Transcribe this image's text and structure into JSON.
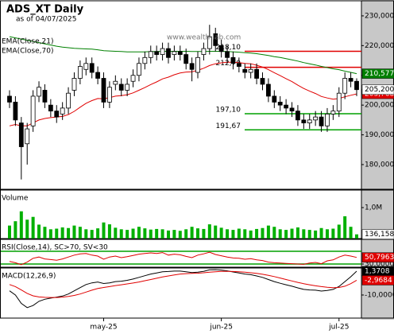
{
  "chart_data": [
    {
      "type": "candlestick",
      "title": "ADS_XT Daily",
      "subtitle": "as of 04/07/2025",
      "annotation": "www.wealth-lab.com",
      "categories": [
        null,
        null,
        null,
        null,
        null,
        null,
        null,
        null,
        null,
        null,
        null,
        null,
        null,
        null,
        null,
        null,
        "may-25",
        null,
        null,
        null,
        null,
        null,
        null,
        null,
        null,
        null,
        null,
        null,
        null,
        null,
        null,
        null,
        null,
        null,
        null,
        null,
        "jun-25",
        null,
        null,
        null,
        null,
        null,
        null,
        null,
        null,
        null,
        null,
        null,
        null,
        null,
        null,
        null,
        null,
        null,
        null,
        null,
        "jul-25",
        null,
        null,
        null
      ],
      "open": [
        203,
        201,
        194,
        187,
        193,
        203,
        205,
        200,
        198,
        197,
        199,
        205,
        209,
        212,
        214,
        211,
        209,
        201,
        207,
        207,
        205,
        208,
        210,
        214,
        216,
        218,
        217,
        219,
        217,
        218,
        217,
        214,
        211,
        217,
        219,
        224,
        220,
        218,
        216,
        214,
        212,
        211,
        212,
        209,
        207,
        203,
        201,
        200,
        199,
        198,
        195,
        194,
        195,
        196,
        193,
        197,
        198,
        204,
        209,
        208
      ],
      "high": [
        205,
        203,
        196,
        194,
        205,
        208,
        207,
        202,
        200,
        201,
        206,
        211,
        215,
        216,
        216,
        213,
        211,
        208,
        210,
        209,
        209,
        212,
        216,
        218,
        220,
        220,
        221,
        221,
        220,
        220,
        219,
        216,
        218,
        221,
        227,
        226,
        222,
        220,
        218,
        216,
        214,
        214,
        214,
        211,
        209,
        205,
        203,
        202,
        201,
        200,
        197,
        197,
        198,
        198,
        199,
        200,
        206,
        211,
        211,
        209
      ],
      "low": [
        199,
        193,
        175,
        180,
        191,
        201,
        199,
        196,
        194,
        195,
        197,
        203,
        207,
        210,
        209,
        207,
        199,
        199,
        205,
        203,
        203,
        206,
        208,
        212,
        214,
        215,
        215,
        214,
        215,
        215,
        212,
        208,
        209,
        215,
        217,
        218,
        216,
        214,
        212,
        211,
        209,
        209,
        207,
        205,
        201,
        199,
        198,
        197,
        196,
        193,
        192,
        192,
        193,
        191,
        191,
        195,
        196,
        202,
        206,
        203
      ],
      "close": [
        201,
        195,
        186,
        192,
        203,
        206,
        201,
        198,
        196,
        199,
        204,
        209,
        213,
        214,
        211,
        209,
        201,
        206,
        208,
        205,
        207,
        210,
        214,
        216,
        218,
        217,
        219,
        216,
        218,
        217,
        214,
        212,
        216,
        219,
        223,
        220,
        218,
        216,
        214,
        213,
        211,
        212,
        209,
        207,
        203,
        201,
        200,
        199,
        198,
        195,
        194,
        195,
        196,
        193,
        197,
        198,
        204,
        209,
        208,
        205.2
      ],
      "close_last_label": "205,200",
      "up_color": "#ffffff",
      "down_color": "#000000",
      "series": [
        {
          "name": "EMA(Close,21)",
          "color": "#e00000",
          "last_label": "203,768",
          "values": [
            193,
            193.5,
            193,
            193,
            194,
            195,
            195.5,
            195.8,
            196,
            196.2,
            196.8,
            197.9,
            199.3,
            200.6,
            201.5,
            202.2,
            202.1,
            202.5,
            203,
            203.2,
            203.5,
            204.1,
            205,
            205.9,
            206.9,
            207.8,
            208.8,
            209.4,
            210.2,
            210.8,
            211.1,
            211.2,
            211.7,
            212.4,
            213.3,
            213.9,
            214.2,
            214.4,
            214.4,
            214.3,
            214,
            213.9,
            213.4,
            212.8,
            211.9,
            210.9,
            209.9,
            208.9,
            207.9,
            206.7,
            205.6,
            204.7,
            203.9,
            202.9,
            202.4,
            202,
            202.2,
            202.8,
            203.3,
            203.768
          ]
        },
        {
          "name": "EMA(Close,70)",
          "color": "#008000",
          "last_label": "210,577",
          "values": [
            223,
            222.6,
            222.2,
            221.8,
            221.4,
            221,
            220.6,
            220.2,
            219.8,
            219.5,
            219.3,
            219.1,
            219,
            218.9,
            218.8,
            218.6,
            218.3,
            218.2,
            218.1,
            218,
            217.9,
            217.9,
            217.9,
            217.9,
            218,
            218,
            218.1,
            218.1,
            218.1,
            218.1,
            218.1,
            218,
            218,
            218,
            218.1,
            218.1,
            218.1,
            218,
            217.9,
            217.8,
            217.6,
            217.5,
            217.3,
            217,
            216.7,
            216.3,
            216,
            215.6,
            215.2,
            214.8,
            214.3,
            213.9,
            213.5,
            213,
            212.6,
            212.2,
            211.9,
            211.4,
            211,
            210.577
          ]
        }
      ],
      "levels": [
        {
          "value": 218.1,
          "label": "218,10",
          "color": "#e00000"
        },
        {
          "value": 212.7,
          "label": "212,70",
          "color": "#e00000"
        },
        {
          "value": 197.1,
          "label": "197,10",
          "color": "#00a000"
        },
        {
          "value": 191.67,
          "label": "191,67",
          "color": "#00a000"
        }
      ],
      "ylim": [
        171.7,
        234.8
      ],
      "yticks": [
        {
          "value": 180,
          "label": "180,000"
        },
        {
          "value": 190,
          "label": "190,000"
        },
        {
          "value": 200,
          "label": "200,000"
        },
        {
          "value": 210,
          "label": "210,000"
        },
        {
          "value": 220,
          "label": "220,000"
        },
        {
          "value": 230,
          "label": "230,000"
        }
      ]
    },
    {
      "type": "bar",
      "title": "Volume",
      "color": "#00b000",
      "last_label": "136,158",
      "values": [
        420000,
        560000,
        880000,
        610000,
        700000,
        450000,
        380000,
        300000,
        320000,
        360000,
        340000,
        420000,
        380000,
        300000,
        280000,
        330000,
        520000,
        460000,
        350000,
        300000,
        280000,
        320000,
        380000,
        330000,
        290000,
        310000,
        300000,
        260000,
        280000,
        250000,
        300000,
        380000,
        330000,
        310000,
        460000,
        420000,
        350000,
        300000,
        280000,
        320000,
        300000,
        260000,
        310000,
        340000,
        420000,
        380000,
        300000,
        280000,
        320000,
        360000,
        300000,
        280000,
        260000,
        340000,
        300000,
        320000,
        450000,
        720000,
        380000,
        136158
      ],
      "ylim": [
        0,
        1540000
      ],
      "yticks": [
        {
          "value": 1000000,
          "label": "1,0M"
        }
      ]
    },
    {
      "type": "line",
      "title": "RSI(Close,14), SC>70, SV<30",
      "color": "#e00000",
      "last_label": "50,7963",
      "values": [
        38,
        34,
        28,
        36,
        48,
        52,
        46,
        44,
        42,
        46,
        52,
        58,
        62,
        63,
        58,
        55,
        45,
        52,
        55,
        50,
        53,
        57,
        61,
        63,
        65,
        63,
        66,
        58,
        61,
        59,
        54,
        50,
        58,
        62,
        67,
        60,
        56,
        52,
        49,
        48,
        45,
        47,
        43,
        41,
        36,
        34,
        33,
        32,
        31,
        30,
        29,
        33,
        35,
        31,
        40,
        43,
        52,
        58,
        55,
        50.7963
      ],
      "levels": [
        70,
        30
      ],
      "level_color": "#00a000",
      "ylim": [
        20,
        105
      ],
      "yticks": [
        {
          "value": 30,
          "label": "30,0000"
        }
      ]
    },
    {
      "type": "line",
      "title": "MACD(12,26,9)",
      "series": [
        {
          "color": "#000000",
          "last_label": "1,3708",
          "values": [
            -8,
            -10,
            -14,
            -16,
            -15,
            -13,
            -12,
            -11.5,
            -11,
            -10.5,
            -9.5,
            -8,
            -6.5,
            -5,
            -4.2,
            -3.8,
            -4.5,
            -4.2,
            -3.6,
            -3.4,
            -3,
            -2.4,
            -1.6,
            -0.8,
            0,
            0.5,
            1.1,
            1.2,
            1.4,
            1.4,
            1.1,
            0.7,
            0.9,
            1.3,
            2,
            2.1,
            1.9,
            1.5,
            1,
            0.5,
            0,
            -0.3,
            -0.9,
            -1.6,
            -2.6,
            -3.6,
            -4.4,
            -5.1,
            -5.8,
            -6.6,
            -7.3,
            -7.6,
            -7.7,
            -8.1,
            -7.8,
            -7.3,
            -5.9,
            -3.6,
            -1.3,
            1.3708
          ]
        },
        {
          "color": "#e00000",
          "last_label": "-2,9684",
          "values": [
            -5,
            -6,
            -7.6,
            -9.2,
            -10.4,
            -10.9,
            -11.1,
            -11.2,
            -11.2,
            -11,
            -10.7,
            -10.2,
            -9.5,
            -8.6,
            -7.7,
            -6.9,
            -6.4,
            -6,
            -5.5,
            -5.1,
            -4.7,
            -4.3,
            -3.8,
            -3.2,
            -2.6,
            -2,
            -1.4,
            -0.9,
            -0.4,
            0,
            0.2,
            0.3,
            0.4,
            0.6,
            0.9,
            1.1,
            1.3,
            1.3,
            1.2,
            1.1,
            0.9,
            0.6,
            0.3,
            -0.1,
            -0.6,
            -1.2,
            -1.9,
            -2.6,
            -3.3,
            -4,
            -4.6,
            -5.1,
            -5.6,
            -6,
            -6.3,
            -6.5,
            -6.4,
            -5.8,
            -4.6,
            -2.9684
          ]
        }
      ],
      "ylim": [
        -21,
        2.5
      ],
      "yticks": [
        {
          "value": -10,
          "label": "-10,0000"
        }
      ]
    }
  ]
}
